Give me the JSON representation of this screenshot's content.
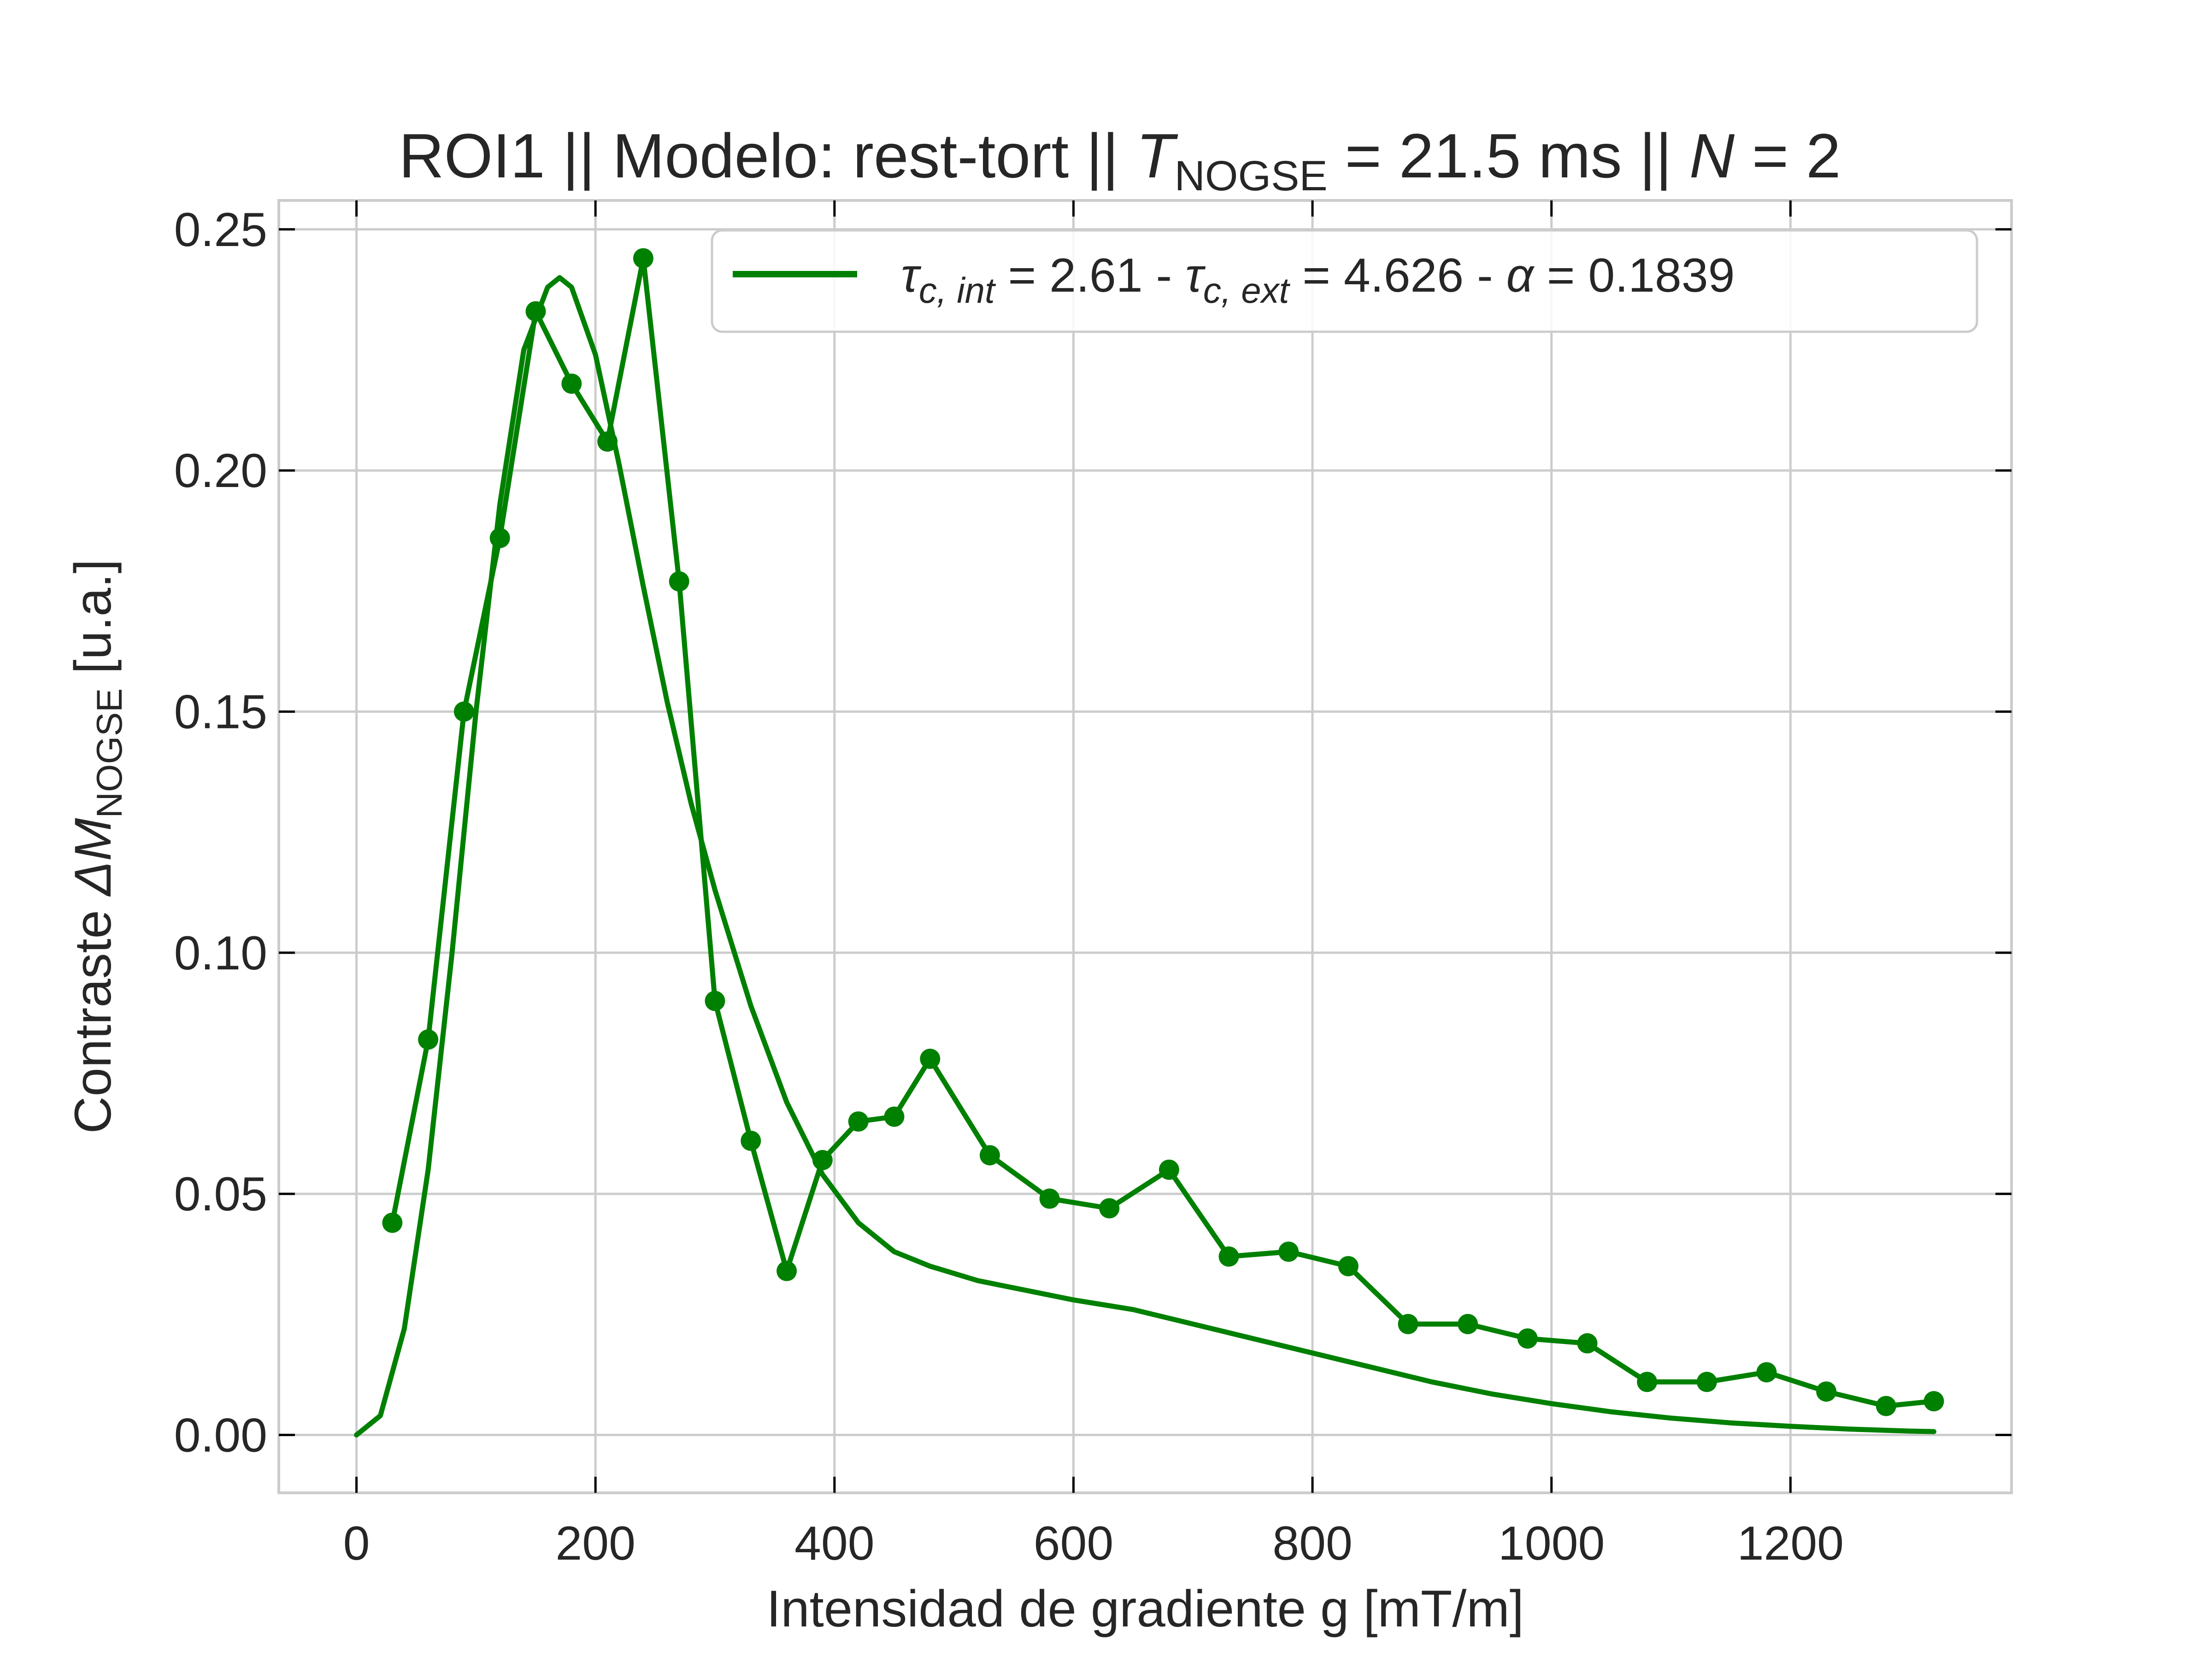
{
  "chart_data": {
    "type": "line",
    "title_parts": {
      "prefix": "ROI1 || Modelo: rest-tort || ",
      "t_symbol": "T",
      "t_subscript": "NOGSE",
      "t_value": " = 21.5 ms  ||  ",
      "n_symbol": "N",
      "n_value": " = 2"
    },
    "xlabel": "Intensidad de gradiente g [mT/m]",
    "ylabel_parts": {
      "prefix": "Contraste ",
      "symbol": "ΔM",
      "subscript": "NOGSE",
      "suffix": " [u.a.]"
    },
    "xlim": [
      -65,
      1385
    ],
    "ylim": [
      -0.012,
      0.256
    ],
    "xticks": [
      0,
      200,
      400,
      600,
      800,
      1000,
      1200
    ],
    "xtick_labels": [
      "0",
      "200",
      "400",
      "600",
      "800",
      "1000",
      "1200"
    ],
    "yticks": [
      0.0,
      0.05,
      0.1,
      0.15,
      0.2,
      0.25
    ],
    "ytick_labels": [
      "0.00",
      "0.05",
      "0.10",
      "0.15",
      "0.20",
      "0.25"
    ],
    "grid": true,
    "legend_position": "top-right",
    "legend": {
      "tau1_symbol": "τ",
      "tau1_sub": "c, int",
      "tau1_value": " = 2.61 - ",
      "tau2_symbol": "τ",
      "tau2_sub": "c, ext",
      "tau2_value": " = 4.626 - ",
      "alpha_symbol": "α",
      "alpha_value": " = 0.1839"
    },
    "color": "#008000",
    "series": [
      {
        "kind": "measured",
        "x": [
          30,
          60,
          90,
          120,
          150,
          180,
          210,
          240,
          270,
          300,
          330,
          360,
          390,
          420,
          450,
          480,
          530,
          580,
          630,
          680,
          730,
          780,
          830,
          880,
          930,
          980,
          1030,
          1080,
          1130,
          1180,
          1230,
          1280,
          1320
        ],
        "y": [
          0.044,
          0.082,
          0.15,
          0.186,
          0.233,
          0.218,
          0.206,
          0.244,
          0.177,
          0.09,
          0.061,
          0.034,
          0.057,
          0.065,
          0.066,
          0.078,
          0.058,
          0.049,
          0.047,
          0.055,
          0.037,
          0.038,
          0.035,
          0.023,
          0.023,
          0.02,
          0.019,
          0.011,
          0.011,
          0.013,
          0.009,
          0.006,
          0.007
        ]
      },
      {
        "kind": "fit",
        "x": [
          0,
          20,
          40,
          60,
          80,
          100,
          120,
          140,
          160,
          170,
          180,
          200,
          220,
          240,
          260,
          280,
          300,
          330,
          360,
          390,
          420,
          450,
          480,
          520,
          560,
          600,
          650,
          700,
          750,
          800,
          850,
          900,
          950,
          1000,
          1050,
          1100,
          1150,
          1200,
          1250,
          1300,
          1320
        ],
        "y": [
          0.0,
          0.004,
          0.022,
          0.055,
          0.1,
          0.15,
          0.193,
          0.225,
          0.238,
          0.24,
          0.238,
          0.224,
          0.201,
          0.176,
          0.152,
          0.131,
          0.113,
          0.089,
          0.069,
          0.054,
          0.044,
          0.038,
          0.035,
          0.032,
          0.03,
          0.028,
          0.026,
          0.023,
          0.02,
          0.017,
          0.014,
          0.011,
          0.0085,
          0.0065,
          0.0048,
          0.0035,
          0.0025,
          0.0018,
          0.0012,
          0.0008,
          0.0007
        ]
      }
    ]
  }
}
